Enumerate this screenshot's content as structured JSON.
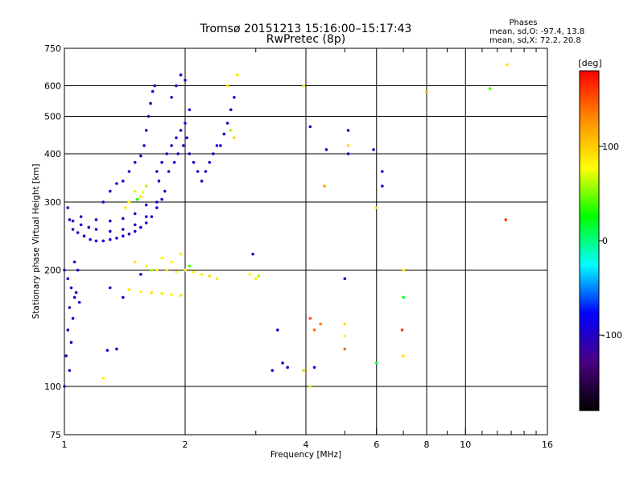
{
  "header": {
    "title_line1": "Tromsø 20151213 15:16:00–15:17:43",
    "title_line2": "RwPretec (8p)"
  },
  "stats": {
    "heading": "Phases",
    "line_o": "mean, sd,O: -97.4, 13.8",
    "line_x": "mean, sd,X:  72.2, 20.8"
  },
  "colorbar": {
    "unit": "[deg]",
    "ticks": [
      {
        "value": 100,
        "label": "100"
      },
      {
        "value": 0,
        "label": "0"
      },
      {
        "value": -100,
        "label": "-100"
      }
    ],
    "range": [
      -180,
      180
    ],
    "colors": [
      "#000000",
      "#4b0082",
      "#0000ff",
      "#00ffff",
      "#00ff00",
      "#ffff00",
      "#ff8c00",
      "#ff0000"
    ]
  },
  "chart_data": {
    "type": "scatter",
    "xlabel": "Frequency [MHz]",
    "ylabel": "Stationary phase Virtual Height [km]",
    "xscale": "log",
    "yscale": "log",
    "xlim": [
      1,
      16
    ],
    "ylim": [
      75,
      750
    ],
    "grid": true,
    "xticks": [
      {
        "value": 1,
        "label": "1"
      },
      {
        "value": 2,
        "label": "2"
      },
      {
        "value": 4,
        "label": "4"
      },
      {
        "value": 6,
        "label": "6"
      },
      {
        "value": 8,
        "label": "8"
      },
      {
        "value": 10,
        "label": "10"
      },
      {
        "value": 16,
        "label": "16"
      }
    ],
    "xgrid": [
      2,
      4,
      6,
      8,
      10
    ],
    "xminor": [
      3,
      5,
      7,
      9,
      11,
      12,
      13,
      14,
      15
    ],
    "yticks": [
      {
        "value": 75,
        "label": "75"
      },
      {
        "value": 100,
        "label": "100"
      },
      {
        "value": 200,
        "label": "200"
      },
      {
        "value": 300,
        "label": "300"
      },
      {
        "value": 400,
        "label": "400"
      },
      {
        "value": 500,
        "label": "500"
      },
      {
        "value": 600,
        "label": "600"
      },
      {
        "value": 750,
        "label": "750"
      }
    ],
    "ygrid": [
      100,
      200,
      300,
      400,
      500,
      600
    ],
    "points": [
      [
        1.02,
        290,
        -100
      ],
      [
        1.03,
        270,
        -105
      ],
      [
        1.05,
        255,
        -95
      ],
      [
        1.08,
        250,
        -100
      ],
      [
        1.12,
        245,
        -98
      ],
      [
        1.16,
        240,
        -102
      ],
      [
        1.2,
        238,
        -100
      ],
      [
        1.25,
        238,
        -96
      ],
      [
        1.3,
        240,
        -100
      ],
      [
        1.35,
        242,
        -104
      ],
      [
        1.4,
        245,
        -98
      ],
      [
        1.45,
        248,
        -100
      ],
      [
        1.5,
        252,
        -97
      ],
      [
        1.55,
        258,
        -101
      ],
      [
        1.6,
        265,
        -99
      ],
      [
        1.65,
        275,
        -100
      ],
      [
        1.7,
        290,
        -96
      ],
      [
        1.75,
        305,
        -100
      ],
      [
        1.78,
        320,
        -103
      ],
      [
        1.05,
        268,
        -99
      ],
      [
        1.1,
        262,
        -101
      ],
      [
        1.15,
        258,
        -97
      ],
      [
        1.2,
        255,
        -100
      ],
      [
        1.3,
        252,
        -102
      ],
      [
        1.4,
        255,
        -98
      ],
      [
        1.5,
        262,
        -100
      ],
      [
        1.6,
        275,
        -95
      ],
      [
        1.7,
        300,
        -100
      ],
      [
        1.1,
        275,
        -100
      ],
      [
        1.2,
        270,
        -104
      ],
      [
        1.3,
        268,
        -98
      ],
      [
        1.4,
        272,
        -100
      ],
      [
        1.5,
        280,
        -99
      ],
      [
        1.6,
        295,
        -101
      ],
      [
        1.25,
        300,
        -100
      ],
      [
        1.3,
        320,
        -97
      ],
      [
        1.35,
        335,
        -100
      ],
      [
        1.4,
        340,
        -102
      ],
      [
        1.45,
        360,
        -100
      ],
      [
        1.5,
        380,
        -98
      ],
      [
        1.55,
        395,
        -101
      ],
      [
        1.58,
        420,
        -100
      ],
      [
        1.6,
        460,
        -99
      ],
      [
        1.62,
        500,
        -100
      ],
      [
        1.64,
        540,
        -103
      ],
      [
        1.66,
        580,
        -100
      ],
      [
        1.68,
        600,
        -98
      ],
      [
        1.45,
        300,
        80
      ],
      [
        1.5,
        320,
        70
      ],
      [
        1.55,
        310,
        90
      ],
      [
        1.6,
        330,
        60
      ],
      [
        1.42,
        290,
        85
      ],
      [
        1.52,
        305,
        30
      ],
      [
        1.57,
        318,
        75
      ],
      [
        1.7,
        360,
        -100
      ],
      [
        1.75,
        380,
        -98
      ],
      [
        1.8,
        400,
        -101
      ],
      [
        1.85,
        420,
        -100
      ],
      [
        1.9,
        440,
        -97
      ],
      [
        1.95,
        460,
        -100
      ],
      [
        2.0,
        480,
        -102
      ],
      [
        1.72,
        340,
        -99
      ],
      [
        1.82,
        360,
        -100
      ],
      [
        1.88,
        380,
        -103
      ],
      [
        1.92,
        400,
        -100
      ],
      [
        1.98,
        420,
        -98
      ],
      [
        2.02,
        440,
        -100
      ],
      [
        2.05,
        400,
        -101
      ],
      [
        2.1,
        380,
        -100
      ],
      [
        2.15,
        360,
        -99
      ],
      [
        2.2,
        340,
        -100
      ],
      [
        2.25,
        360,
        -102
      ],
      [
        2.3,
        380,
        -100
      ],
      [
        2.35,
        400,
        -98
      ],
      [
        2.4,
        420,
        -100
      ],
      [
        1.9,
        600,
        -100
      ],
      [
        1.95,
        640,
        -98
      ],
      [
        2.0,
        620,
        -101
      ],
      [
        1.85,
        560,
        -100
      ],
      [
        2.05,
        520,
        -99
      ],
      [
        2.45,
        420,
        -100
      ],
      [
        2.5,
        450,
        -98
      ],
      [
        2.55,
        480,
        -101
      ],
      [
        2.6,
        520,
        -100
      ],
      [
        2.65,
        560,
        -99
      ],
      [
        2.55,
        600,
        90
      ],
      [
        2.7,
        640,
        85
      ],
      [
        2.6,
        460,
        60
      ],
      [
        2.65,
        440,
        95
      ],
      [
        1.0,
        200,
        -100
      ],
      [
        1.02,
        190,
        -98
      ],
      [
        1.04,
        180,
        -101
      ],
      [
        1.06,
        170,
        -100
      ],
      [
        1.03,
        160,
        -99
      ],
      [
        1.05,
        150,
        -100
      ],
      [
        1.02,
        140,
        -103
      ],
      [
        1.04,
        130,
        -100
      ],
      [
        1.01,
        120,
        -98
      ],
      [
        1.03,
        110,
        -101
      ],
      [
        1.0,
        100,
        -100
      ],
      [
        1.06,
        210,
        -99
      ],
      [
        1.08,
        200,
        -100
      ],
      [
        1.07,
        175,
        -100
      ],
      [
        1.09,
        165,
        -102
      ],
      [
        1.5,
        210,
        90
      ],
      [
        1.6,
        205,
        80
      ],
      [
        1.7,
        200,
        85
      ],
      [
        1.8,
        200,
        90
      ],
      [
        1.9,
        198,
        80
      ],
      [
        2.0,
        200,
        85
      ],
      [
        2.1,
        198,
        88
      ],
      [
        2.2,
        195,
        82
      ],
      [
        2.3,
        193,
        90
      ],
      [
        2.4,
        190,
        85
      ],
      [
        1.55,
        195,
        -100
      ],
      [
        1.65,
        200,
        60
      ],
      [
        1.75,
        215,
        75
      ],
      [
        1.85,
        210,
        80
      ],
      [
        1.95,
        220,
        85
      ],
      [
        2.05,
        205,
        40
      ],
      [
        1.45,
        178,
        85
      ],
      [
        1.55,
        176,
        80
      ],
      [
        1.65,
        175,
        90
      ],
      [
        1.75,
        174,
        85
      ],
      [
        1.85,
        173,
        80
      ],
      [
        1.95,
        172,
        88
      ],
      [
        1.3,
        180,
        -100
      ],
      [
        1.4,
        170,
        -100
      ],
      [
        1.35,
        125,
        -100
      ],
      [
        1.28,
        124,
        -98
      ],
      [
        1.25,
        105,
        80
      ],
      [
        2.9,
        195,
        80
      ],
      [
        3.0,
        190,
        85
      ],
      [
        3.05,
        193,
        60
      ],
      [
        2.95,
        220,
        -100
      ],
      [
        3.4,
        140,
        -100
      ],
      [
        3.3,
        110,
        -100
      ],
      [
        3.5,
        115,
        -98
      ],
      [
        3.6,
        112,
        -101
      ],
      [
        3.95,
        600,
        90
      ],
      [
        4.1,
        470,
        -100
      ],
      [
        4.5,
        410,
        -99
      ],
      [
        4.45,
        330,
        120
      ],
      [
        5.1,
        460,
        -100
      ],
      [
        5.1,
        420,
        95
      ],
      [
        5.1,
        400,
        -100
      ],
      [
        5.9,
        410,
        -100
      ],
      [
        6.2,
        360,
        -100
      ],
      [
        6.2,
        330,
        -100
      ],
      [
        6.0,
        290,
        95
      ],
      [
        5.0,
        190,
        -100
      ],
      [
        4.1,
        150,
        150
      ],
      [
        4.2,
        140,
        140
      ],
      [
        4.35,
        145,
        130
      ],
      [
        5.0,
        135,
        80
      ],
      [
        5.0,
        125,
        140
      ],
      [
        5.0,
        145,
        90
      ],
      [
        4.2,
        112,
        -100
      ],
      [
        4.1,
        100,
        60
      ],
      [
        3.95,
        110,
        100
      ],
      [
        7.0,
        200,
        80
      ],
      [
        6.95,
        140,
        160
      ],
      [
        7.0,
        170,
        20
      ],
      [
        7.0,
        120,
        90
      ],
      [
        8.0,
        580,
        110
      ],
      [
        11.5,
        590,
        40
      ],
      [
        12.6,
        270,
        160
      ],
      [
        12.7,
        680,
        90
      ],
      [
        6.0,
        115,
        20
      ]
    ]
  }
}
